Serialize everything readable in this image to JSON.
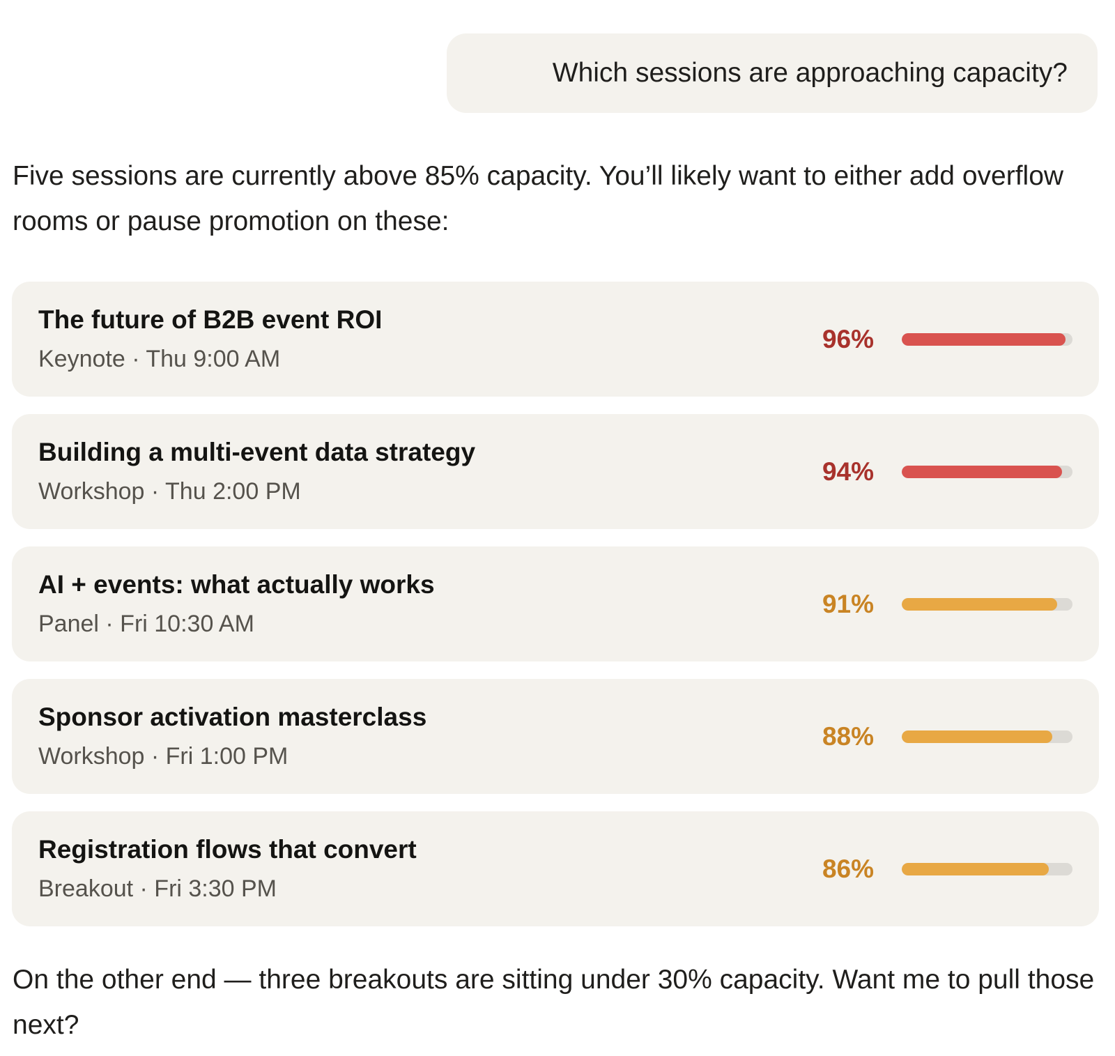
{
  "user_message": "Which sessions are approaching capacity?",
  "assistant": {
    "intro": "Five sessions are currently above 85% capacity. You’ll likely want to either add overflow rooms or pause promotion on these:",
    "outro": "On the other end — three breakouts are sitting under 30% capacity. Want me to pull those next?"
  },
  "colors": {
    "critical_text": "#a8322c",
    "critical_bar": "#d9534f",
    "warning_text": "#c98424",
    "warning_bar": "#e8a844",
    "track": "#dcdad5"
  },
  "sessions": [
    {
      "title": "The future of B2B event ROI",
      "meta": "Keynote · Thu 9:00 AM",
      "percent_label": "96%",
      "fill": 0.96,
      "level": "critical"
    },
    {
      "title": "Building a multi-event data strategy",
      "meta": "Workshop · Thu 2:00 PM",
      "percent_label": "94%",
      "fill": 0.94,
      "level": "critical"
    },
    {
      "title": "AI + events: what actually works",
      "meta": "Panel · Fri 10:30 AM",
      "percent_label": "91%",
      "fill": 0.91,
      "level": "warning"
    },
    {
      "title": "Sponsor activation masterclass",
      "meta": "Workshop · Fri 1:00 PM",
      "percent_label": "88%",
      "fill": 0.88,
      "level": "warning"
    },
    {
      "title": "Registration flows that convert",
      "meta": "Breakout · Fri 3:30 PM",
      "percent_label": "86%",
      "fill": 0.86,
      "level": "warning"
    }
  ]
}
